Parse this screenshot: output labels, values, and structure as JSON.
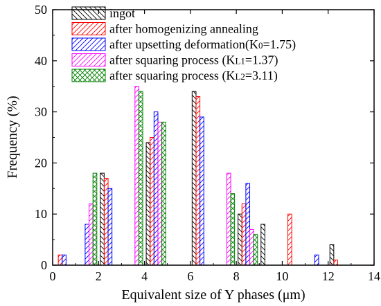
{
  "chart_data": {
    "type": "bar",
    "xlabel": "Equivalent size of Y phases (μm)",
    "ylabel": "Frequency (%)",
    "xlim": [
      0,
      14
    ],
    "ylim": [
      0,
      50
    ],
    "x_ticks": [
      "0",
      "2",
      "4",
      "6",
      "8",
      "10",
      "12",
      "14"
    ],
    "y_ticks": [
      "0",
      "10",
      "20",
      "30",
      "40",
      "50"
    ],
    "grid": false,
    "legend_position": "top-left",
    "bin_centers": [
      0.5,
      1.5,
      2.5,
      3.5,
      4.5,
      5.5,
      6.5,
      7.5,
      8.5,
      9.5,
      10.5,
      11.5,
      12.5
    ],
    "series": [
      {
        "name": "ingot",
        "color": "#000000",
        "pattern": "hatch-backslash",
        "values": [
          0,
          0,
          18,
          0,
          24,
          0,
          34,
          0,
          10,
          8,
          0,
          0,
          4
        ]
      },
      {
        "name": "after homogenizing annealing",
        "color": "#ff0000",
        "pattern": "hatch-slash",
        "values": [
          2,
          0,
          17,
          0,
          25,
          0,
          33,
          0,
          12,
          0,
          10,
          0,
          1
        ]
      },
      {
        "name": "after upsetting deformation(K",
        "sub": "0",
        "suffix": "=1.75)",
        "color": "#0000ff",
        "pattern": "hatch-slash",
        "values": [
          2,
          8,
          15,
          0,
          30,
          0,
          29,
          0,
          16,
          0,
          0,
          2,
          0
        ]
      },
      {
        "name": "after squaring process (K",
        "sub": "L1",
        "suffix": "=1.37)",
        "color": "#ff00ff",
        "pattern": "hatch-slash",
        "values": [
          0,
          12,
          0,
          35,
          28,
          0,
          0,
          18,
          7,
          0,
          0,
          0,
          0
        ]
      },
      {
        "name": "after squaring process (K",
        "sub": "L2",
        "suffix": "=3.11)",
        "color": "#008000",
        "pattern": "hatch-cross",
        "values": [
          0,
          18,
          0,
          34,
          28,
          0,
          0,
          14,
          6,
          0,
          0,
          0,
          0
        ]
      }
    ]
  }
}
